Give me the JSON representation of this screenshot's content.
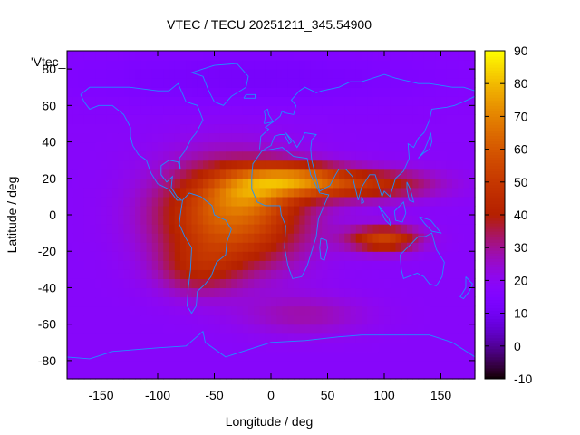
{
  "chart_data": {
    "type": "heatmap",
    "title": "VTEC / TECU 20251211_345.54900",
    "xlabel": "Longitude / deg",
    "ylabel": "Latitude / deg",
    "legend_key": "'Vtec_",
    "xlim": [
      -180,
      180
    ],
    "ylim": [
      -90,
      90
    ],
    "x_ticks": [
      -150,
      -100,
      -50,
      0,
      50,
      100,
      150
    ],
    "y_ticks": [
      -80,
      -60,
      -40,
      -20,
      0,
      20,
      40,
      60,
      80
    ],
    "colorbar": {
      "min": -10,
      "max": 90,
      "ticks": [
        -10,
        0,
        10,
        20,
        30,
        40,
        50,
        60,
        70,
        80,
        90
      ]
    },
    "background_level": 18,
    "features": [
      {
        "lon": -35,
        "lat": 0,
        "sigma_lon": 45,
        "sigma_lat": 20,
        "value": 45
      },
      {
        "lon": -20,
        "lat": 14,
        "sigma_lon": 25,
        "sigma_lat": 8,
        "value": 18
      },
      {
        "lon": 20,
        "lat": 20,
        "sigma_lon": 30,
        "sigma_lat": 6,
        "value": 32
      },
      {
        "lon": 80,
        "lat": 17,
        "sigma_lon": 45,
        "sigma_lat": 6,
        "value": 28
      },
      {
        "lon": 100,
        "lat": -13,
        "sigma_lon": 22,
        "sigma_lat": 5,
        "value": 35
      },
      {
        "lon": -65,
        "lat": -30,
        "sigma_lon": 25,
        "sigma_lat": 10,
        "value": 15
      },
      {
        "lon": 30,
        "lat": -55,
        "sigma_lon": 40,
        "sigma_lat": 8,
        "value": 10
      },
      {
        "lon": -20,
        "lat": 75,
        "sigma_lon": 120,
        "sigma_lat": 10,
        "value": -6
      }
    ],
    "coastline_color": "#1e90ff"
  }
}
